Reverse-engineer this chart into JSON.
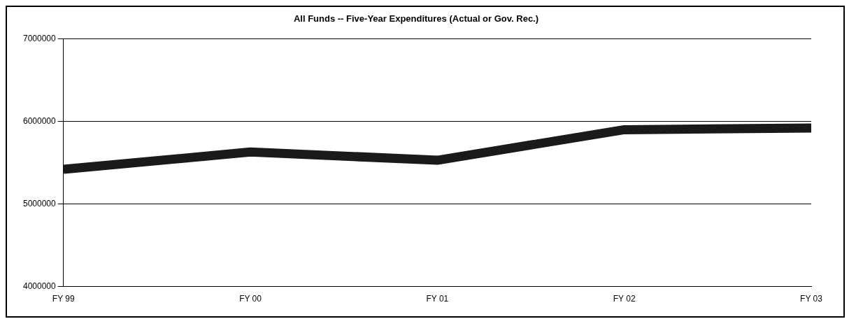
{
  "chart_data": {
    "type": "line",
    "title": "All Funds -- Five-Year Expenditures (Actual or Gov. Rec.)",
    "categories": [
      "FY 99",
      "FY 00",
      "FY 01",
      "FY 02",
      "FY 03"
    ],
    "series": [
      {
        "color": "#1a1a1a",
        "values": [
          5420000,
          5630000,
          5530000,
          5900000,
          5920000
        ]
      }
    ],
    "ylim": [
      4000000,
      7000000
    ],
    "yticks": [
      4000000,
      5000000,
      6000000,
      7000000
    ],
    "grid": "y",
    "legend": false,
    "marker": "none"
  }
}
